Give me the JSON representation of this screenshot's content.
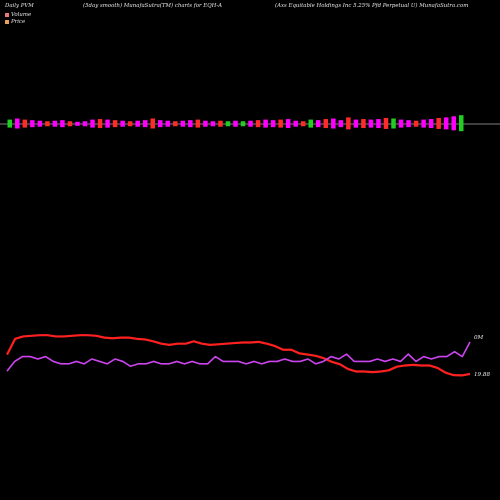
{
  "header": {
    "left": "Daily PVM",
    "mid": "(5day smooth) MunafaSutra(TM) charts for EQH-A",
    "right": "(Axs  Equitable  Holdings Inc 5.25% Pfd  Perpetual U) MunafaSutra.com"
  },
  "legend": {
    "volume": "Volume",
    "price": "Price"
  },
  "colors": {
    "background": "#000000",
    "up": "#ff00ff",
    "down": "#ff2a2a",
    "green": "#22cc22",
    "price_line": "#ff2020",
    "volume_line": "#cc44ee",
    "baseline": "#aaaaaa"
  },
  "chart_data": [
    {
      "type": "bar",
      "title": "Volume",
      "bars": [
        {
          "v": 8,
          "c": "green"
        },
        {
          "v": 10,
          "c": "up"
        },
        {
          "v": 8,
          "c": "down"
        },
        {
          "v": 7,
          "c": "up"
        },
        {
          "v": 6,
          "c": "up"
        },
        {
          "v": 5,
          "c": "down"
        },
        {
          "v": 6,
          "c": "up"
        },
        {
          "v": 7,
          "c": "up"
        },
        {
          "v": 5,
          "c": "down"
        },
        {
          "v": 4,
          "c": "up"
        },
        {
          "v": 5,
          "c": "up"
        },
        {
          "v": 8,
          "c": "up"
        },
        {
          "v": 9,
          "c": "down"
        },
        {
          "v": 8,
          "c": "up"
        },
        {
          "v": 7,
          "c": "down"
        },
        {
          "v": 6,
          "c": "up"
        },
        {
          "v": 5,
          "c": "down"
        },
        {
          "v": 6,
          "c": "up"
        },
        {
          "v": 7,
          "c": "up"
        },
        {
          "v": 10,
          "c": "down"
        },
        {
          "v": 7,
          "c": "up"
        },
        {
          "v": 6,
          "c": "up"
        },
        {
          "v": 5,
          "c": "down"
        },
        {
          "v": 6,
          "c": "up"
        },
        {
          "v": 7,
          "c": "up"
        },
        {
          "v": 8,
          "c": "down"
        },
        {
          "v": 6,
          "c": "up"
        },
        {
          "v": 5,
          "c": "up"
        },
        {
          "v": 6,
          "c": "down"
        },
        {
          "v": 5,
          "c": "green"
        },
        {
          "v": 6,
          "c": "up"
        },
        {
          "v": 5,
          "c": "green"
        },
        {
          "v": 6,
          "c": "up"
        },
        {
          "v": 7,
          "c": "down"
        },
        {
          "v": 8,
          "c": "up"
        },
        {
          "v": 7,
          "c": "up"
        },
        {
          "v": 8,
          "c": "down"
        },
        {
          "v": 9,
          "c": "up"
        },
        {
          "v": 6,
          "c": "up"
        },
        {
          "v": 5,
          "c": "down"
        },
        {
          "v": 8,
          "c": "green"
        },
        {
          "v": 7,
          "c": "up"
        },
        {
          "v": 9,
          "c": "down"
        },
        {
          "v": 10,
          "c": "up"
        },
        {
          "v": 7,
          "c": "up"
        },
        {
          "v": 12,
          "c": "down"
        },
        {
          "v": 8,
          "c": "up"
        },
        {
          "v": 9,
          "c": "down"
        },
        {
          "v": 8,
          "c": "up"
        },
        {
          "v": 9,
          "c": "up"
        },
        {
          "v": 11,
          "c": "down"
        },
        {
          "v": 10,
          "c": "green"
        },
        {
          "v": 8,
          "c": "up"
        },
        {
          "v": 7,
          "c": "up"
        },
        {
          "v": 6,
          "c": "down"
        },
        {
          "v": 8,
          "c": "up"
        },
        {
          "v": 9,
          "c": "up"
        },
        {
          "v": 11,
          "c": "down"
        },
        {
          "v": 12,
          "c": "up"
        },
        {
          "v": 14,
          "c": "up"
        },
        {
          "v": 16,
          "c": "green"
        }
      ]
    },
    {
      "type": "line",
      "series": [
        {
          "name": "Price",
          "label": "19.88",
          "values": [
            21.6,
            22.9,
            23.1,
            23.15,
            23.2,
            23.2,
            23.1,
            23.1,
            23.15,
            23.2,
            23.2,
            23.15,
            23.0,
            22.95,
            23.0,
            23.0,
            22.9,
            22.85,
            22.7,
            22.5,
            22.4,
            22.5,
            22.5,
            22.7,
            22.5,
            22.4,
            22.45,
            22.5,
            22.55,
            22.6,
            22.6,
            22.65,
            22.5,
            22.3,
            22.0,
            22.0,
            21.7,
            21.6,
            21.5,
            21.3,
            21.0,
            20.8,
            20.4,
            20.2,
            20.2,
            20.15,
            20.2,
            20.3,
            20.6,
            20.7,
            20.75,
            20.7,
            20.7,
            20.5,
            20.1,
            19.9,
            19.88,
            20.0
          ]
        },
        {
          "name": "Volume",
          "label": "0M",
          "values": [
            2,
            6,
            8,
            8,
            7,
            8,
            6,
            5,
            5,
            6,
            5,
            7,
            6,
            5,
            7,
            6,
            4,
            5,
            5,
            6,
            5,
            5,
            6,
            5,
            6,
            5,
            5,
            8,
            6,
            6,
            6,
            5,
            6,
            5,
            6,
            6,
            7,
            6,
            6,
            7,
            5,
            6,
            8,
            7,
            9,
            6,
            6,
            6,
            7,
            6,
            7,
            6,
            9,
            6,
            8,
            7,
            8,
            8,
            10,
            8,
            14
          ]
        }
      ]
    }
  ]
}
